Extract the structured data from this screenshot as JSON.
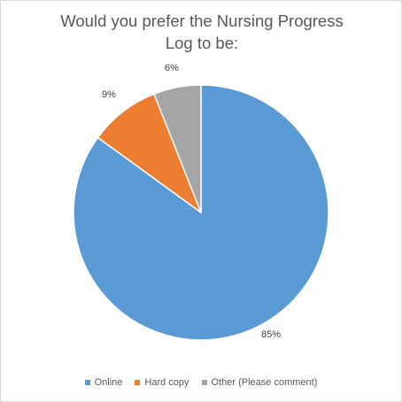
{
  "chart_data": {
    "type": "pie",
    "title_lines": [
      "Would you prefer the Nursing Progress",
      "Log to be:"
    ],
    "categories": [
      "Online",
      "Hard copy",
      "Other (Please comment)"
    ],
    "values": [
      85,
      9,
      6
    ],
    "data_labels": [
      "85%",
      "9%",
      "6%"
    ],
    "colors": [
      "#5b9bd5",
      "#ed7d31",
      "#a5a5a5"
    ],
    "legend_position": "bottom"
  }
}
